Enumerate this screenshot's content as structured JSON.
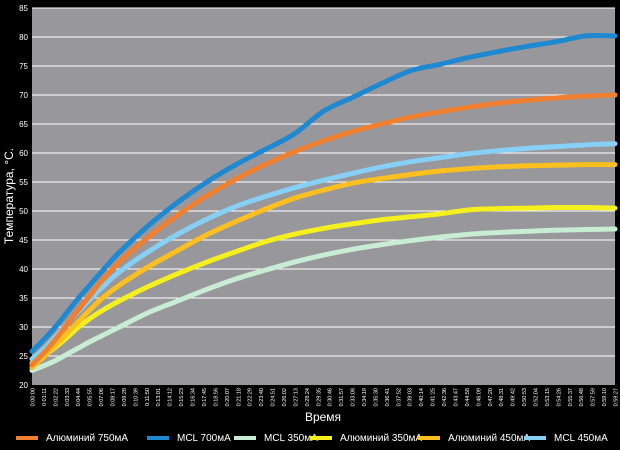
{
  "chart_data": {
    "type": "line",
    "title": "",
    "xlabel": "Время",
    "ylabel": "Температура, °C.",
    "ylim": [
      20,
      85
    ],
    "yticks": [
      20,
      25,
      30,
      35,
      40,
      45,
      50,
      55,
      60,
      65,
      70,
      75,
      80,
      85
    ],
    "grid": true,
    "legend_position": "bottom",
    "x_categories": [
      "0:00:00",
      "0:01:11",
      "0:02:22",
      "0:03:33",
      "0:04:44",
      "0:05:55",
      "0:07:06",
      "0:08:17",
      "0:09:28",
      "0:10:39",
      "0:11:50",
      "0:13:01",
      "0:14:12",
      "0:15:23",
      "0:16:34",
      "0:17:45",
      "0:18:56",
      "0:20:07",
      "0:21:18",
      "0:22:29",
      "0:23:40",
      "0:24:51",
      "0:26:02",
      "0:27:13",
      "0:28:24",
      "0:29:35",
      "0:30:46",
      "0:31:57",
      "0:33:08",
      "0:34:19",
      "0:35:30",
      "0:36:41",
      "0:37:52",
      "0:39:03",
      "0:40:14",
      "0:41:25",
      "0:42:36",
      "0:43:47",
      "0:44:58",
      "0:46:09",
      "0:47:20",
      "0:48:31",
      "0:49:42",
      "0:50:53",
      "0:52:04",
      "0:53:15",
      "0:54:26",
      "0:55:37",
      "0:56:48",
      "0:57:59",
      "0:59:10",
      "0:59:27"
    ],
    "x_positions": [
      0,
      0.02,
      0.04,
      0.06,
      0.08,
      0.1,
      0.12,
      0.15,
      0.2,
      0.25,
      0.3,
      0.35,
      0.4,
      0.45,
      0.5,
      0.55,
      0.6,
      0.65,
      0.7,
      0.75,
      0.8,
      0.85,
      0.9,
      0.95,
      1.0
    ],
    "series": [
      {
        "name": "Алюминий 750мА",
        "color": "#f07f2f",
        "values": [
          23.5,
          25.5,
          27.8,
          30.4,
          33.0,
          35.5,
          38.0,
          41.2,
          45.5,
          49.3,
          52.6,
          55.5,
          58.0,
          60.2,
          62.1,
          63.7,
          65.0,
          66.2,
          67.1,
          67.9,
          68.6,
          69.1,
          69.5,
          69.8,
          70.0
        ]
      },
      {
        "name": "MCL 700мА",
        "color": "#1e88d0",
        "values": [
          25.8,
          27.8,
          30.0,
          32.5,
          35.0,
          37.3,
          39.6,
          42.9,
          47.5,
          51.5,
          55.0,
          58.0,
          60.6,
          63.3,
          67.2,
          69.6,
          72.0,
          74.2,
          75.3,
          76.5,
          77.5,
          78.4,
          79.2,
          80.2,
          80.2
        ]
      },
      {
        "name": "MCL 350мА",
        "color": "#c8ecd4",
        "values": [
          22.5,
          23.3,
          24.2,
          25.3,
          26.4,
          27.5,
          28.5,
          30.0,
          32.5,
          34.5,
          36.5,
          38.3,
          39.8,
          41.2,
          42.4,
          43.4,
          44.2,
          44.9,
          45.5,
          46.0,
          46.3,
          46.5,
          46.7,
          46.8,
          46.9
        ]
      },
      {
        "name": "Алюминий 350мА",
        "color": "#f5ef1e",
        "values": [
          23.8,
          25.0,
          26.5,
          28.2,
          30.0,
          31.5,
          32.8,
          34.5,
          37.0,
          39.2,
          41.2,
          43.0,
          44.7,
          46.0,
          47.0,
          47.8,
          48.5,
          49.0,
          49.5,
          50.2,
          50.4,
          50.5,
          50.6,
          50.6,
          50.5
        ]
      },
      {
        "name": "Алюминий 450мА",
        "color": "#fbbf1f",
        "values": [
          23.0,
          24.8,
          26.8,
          28.9,
          31.0,
          33.0,
          34.9,
          37.2,
          40.4,
          43.2,
          45.9,
          48.2,
          50.3,
          52.2,
          53.6,
          54.8,
          55.6,
          56.3,
          56.9,
          57.3,
          57.6,
          57.8,
          57.9,
          58.0,
          58.0
        ]
      },
      {
        "name": "MCL 450мА",
        "color": "#86cff5",
        "values": [
          24.5,
          26.2,
          28.3,
          30.5,
          32.7,
          34.8,
          36.8,
          39.5,
          43.0,
          46.0,
          48.6,
          50.8,
          52.5,
          54.0,
          55.3,
          56.5,
          57.6,
          58.5,
          59.2,
          59.9,
          60.4,
          60.8,
          61.1,
          61.4,
          61.6
        ]
      }
    ]
  }
}
